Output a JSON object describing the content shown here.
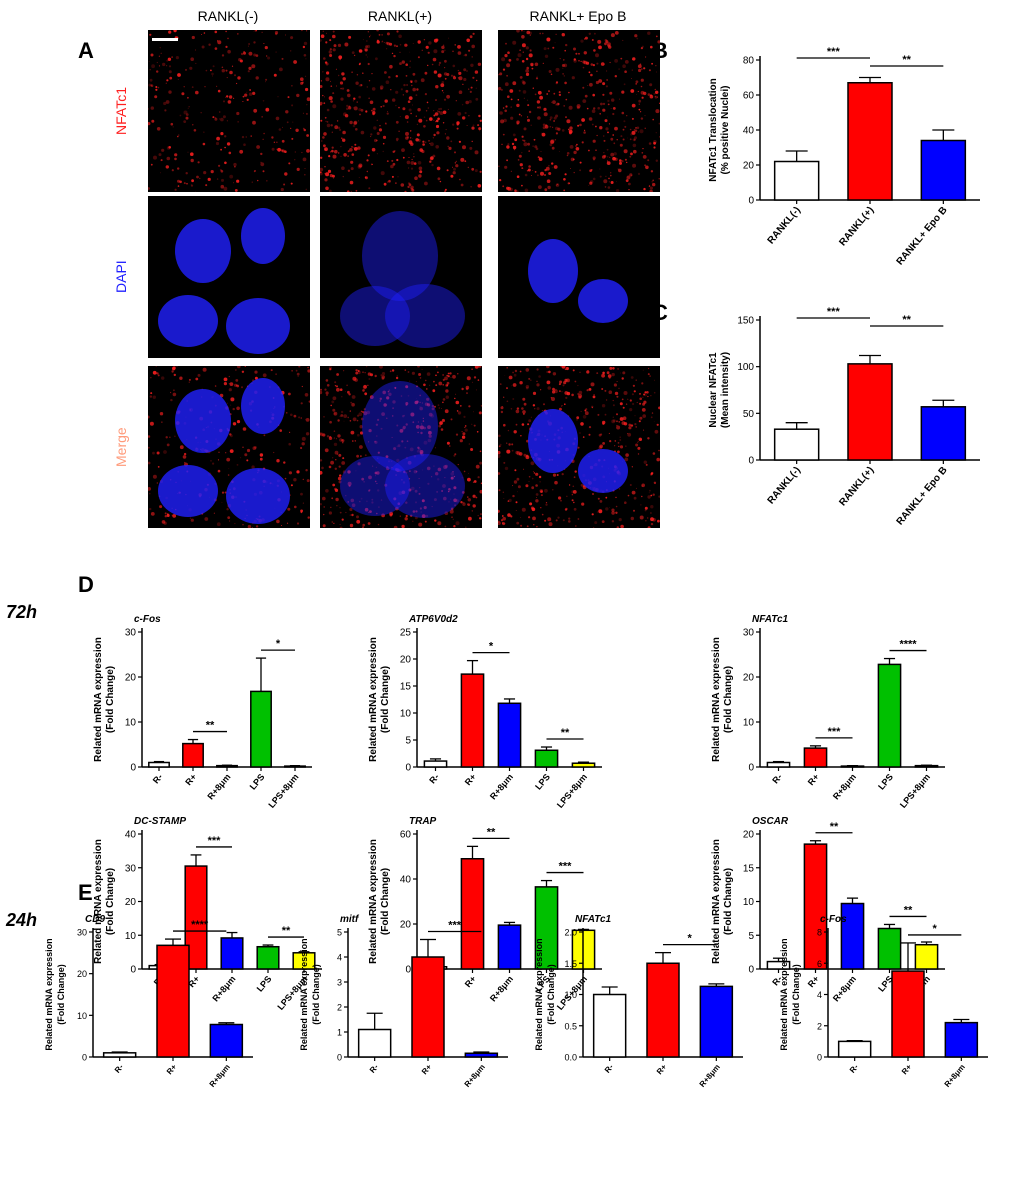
{
  "panels": {
    "A": "A",
    "B": "B",
    "C": "C",
    "D": "D",
    "E": "E"
  },
  "time_labels": {
    "t72": "72h",
    "t24": "24h"
  },
  "micrograph": {
    "columns": [
      "RANKL(-)",
      "RANKL(+)",
      "RANKL+ Epo B"
    ],
    "rows": [
      "NFATc1",
      "DAPI",
      "Merge"
    ]
  },
  "colors": {
    "white": "#ffffff",
    "red": "#ff0000",
    "blue": "#0000ff",
    "green": "#00c000",
    "yellow": "#ffff00",
    "nfatc1": "#ff2020",
    "dapi": "#2020ff",
    "merge": "#ff9a7a"
  },
  "chart_data": [
    {
      "id": "B",
      "type": "bar",
      "categories": [
        "RANKL(-)",
        "RANKL(+)",
        "RANKL+ Epo B"
      ],
      "values": [
        22,
        67,
        34
      ],
      "errors": [
        6,
        3,
        6
      ],
      "colors": [
        "white",
        "red",
        "blue"
      ],
      "ylabel": [
        "NFATc1 Translocation",
        "(% positive Nuclei)"
      ],
      "ylim": [
        0,
        80
      ],
      "yticks": [
        0,
        20,
        40,
        60,
        80
      ],
      "sig": [
        {
          "from": 0,
          "to": 1,
          "label": "***"
        },
        {
          "from": 1,
          "to": 2,
          "label": "**"
        }
      ]
    },
    {
      "id": "C",
      "type": "bar",
      "categories": [
        "RANKL(-)",
        "RANKL(+)",
        "RANKL+ Epo B"
      ],
      "values": [
        33,
        103,
        57
      ],
      "errors": [
        7,
        9,
        7
      ],
      "colors": [
        "white",
        "red",
        "blue"
      ],
      "ylabel": [
        "Nuclear NFATc1",
        "(Mean intensity)"
      ],
      "ylim": [
        0,
        150
      ],
      "yticks": [
        0,
        50,
        100,
        150
      ],
      "sig": [
        {
          "from": 0,
          "to": 1,
          "label": "***"
        },
        {
          "from": 1,
          "to": 2,
          "label": "**"
        }
      ]
    },
    {
      "id": "D1",
      "type": "bar",
      "title": "c-Fos",
      "categories": [
        "R-",
        "R+",
        "R+8μm",
        "LPS",
        "LPS+8μm"
      ],
      "values": [
        1,
        5.2,
        0.3,
        16.8,
        0.2
      ],
      "errors": [
        0.2,
        0.9,
        0.1,
        7.4,
        0.1
      ],
      "colors": [
        "white",
        "red",
        "blue",
        "green",
        "yellow"
      ],
      "ylabel": [
        "Related mRNA expression",
        "(Fold Change)"
      ],
      "ylim": [
        0,
        30
      ],
      "yticks": [
        0,
        10,
        20,
        30
      ],
      "sig": [
        {
          "from": 1,
          "to": 2,
          "label": "**"
        },
        {
          "from": 3,
          "to": 4,
          "label": "*"
        }
      ]
    },
    {
      "id": "D2",
      "type": "bar",
      "title": "ATP6V0d2",
      "categories": [
        "R-",
        "R+",
        "R+8μm",
        "LPS",
        "LPS+8μm"
      ],
      "values": [
        1.1,
        17.2,
        11.8,
        3.1,
        0.7
      ],
      "errors": [
        0.4,
        2.5,
        0.8,
        0.6,
        0.2
      ],
      "colors": [
        "white",
        "red",
        "blue",
        "green",
        "yellow"
      ],
      "ylabel": [
        "Related mRNA expression",
        "(Fold Change)"
      ],
      "ylim": [
        0,
        25
      ],
      "yticks": [
        0,
        5,
        10,
        15,
        20,
        25
      ],
      "sig": [
        {
          "from": 1,
          "to": 2,
          "label": "*"
        },
        {
          "from": 3,
          "to": 4,
          "label": "**"
        }
      ]
    },
    {
      "id": "D3",
      "type": "bar",
      "title": "NFATc1",
      "categories": [
        "R-",
        "R+",
        "R+8μm",
        "LPS",
        "LPS+8μm"
      ],
      "values": [
        1,
        4.2,
        0.2,
        22.8,
        0.3
      ],
      "errors": [
        0.2,
        0.5,
        0.1,
        1.3,
        0.1
      ],
      "colors": [
        "white",
        "red",
        "blue",
        "green",
        "yellow"
      ],
      "ylabel": [
        "Related mRNA expression",
        "(Fold Change)"
      ],
      "ylim": [
        0,
        30
      ],
      "yticks": [
        0,
        10,
        20,
        30
      ],
      "sig": [
        {
          "from": 1,
          "to": 2,
          "label": "***"
        },
        {
          "from": 3,
          "to": 4,
          "label": "****"
        }
      ]
    },
    {
      "id": "D4",
      "type": "bar",
      "title": "DC-STAMP",
      "categories": [
        "R-",
        "R+",
        "R+8μm",
        "LPS",
        "LPS+8μm"
      ],
      "values": [
        1,
        30.5,
        9.2,
        6.6,
        4.8
      ],
      "errors": [
        0.3,
        3.3,
        1.6,
        0.5,
        0.3
      ],
      "colors": [
        "white",
        "red",
        "blue",
        "green",
        "yellow"
      ],
      "ylabel": [
        "Related mRNA expression",
        "(Fold Change)"
      ],
      "ylim": [
        0,
        40
      ],
      "yticks": [
        0,
        10,
        20,
        30,
        40
      ],
      "sig": [
        {
          "from": 1,
          "to": 2,
          "label": "***"
        },
        {
          "from": 3,
          "to": 4,
          "label": "**"
        }
      ]
    },
    {
      "id": "D5",
      "type": "bar",
      "title": "TRAP",
      "categories": [
        "R-",
        "R+",
        "R+8μm",
        "LPS",
        "LPS+8μm"
      ],
      "values": [
        1,
        49,
        19.5,
        36.5,
        17.2
      ],
      "errors": [
        0.4,
        5.5,
        1.2,
        2.8,
        0.4
      ],
      "colors": [
        "white",
        "red",
        "blue",
        "green",
        "yellow"
      ],
      "ylabel": [
        "Related mRNA expression",
        "(Fold Change)"
      ],
      "ylim": [
        0,
        60
      ],
      "yticks": [
        0,
        20,
        40,
        60
      ],
      "sig": [
        {
          "from": 1,
          "to": 2,
          "label": "**"
        },
        {
          "from": 3,
          "to": 4,
          "label": "***"
        }
      ]
    },
    {
      "id": "D6",
      "type": "bar",
      "title": "OSCAR",
      "categories": [
        "R-",
        "R+",
        "R+8μm",
        "LPS",
        "LPS+8μm"
      ],
      "values": [
        1.1,
        18.5,
        9.7,
        6,
        3.6
      ],
      "errors": [
        0.5,
        0.5,
        0.8,
        0.6,
        0.4
      ],
      "colors": [
        "white",
        "red",
        "blue",
        "green",
        "yellow"
      ],
      "ylabel": [
        "Related mRNA expression",
        "(Fold Change)"
      ],
      "ylim": [
        0,
        20
      ],
      "yticks": [
        0,
        5,
        10,
        15,
        20
      ],
      "sig": [
        {
          "from": 1,
          "to": 2,
          "label": "**"
        },
        {
          "from": 3,
          "to": 4,
          "label": "**"
        }
      ]
    },
    {
      "id": "E1",
      "type": "bar",
      "title": "CD9",
      "categories": [
        "R-",
        "R+",
        "R+8μm"
      ],
      "values": [
        1,
        26.8,
        7.8
      ],
      "errors": [
        0.2,
        1.5,
        0.4
      ],
      "colors": [
        "white",
        "red",
        "blue"
      ],
      "ylabel": [
        "Related mRNA expression",
        "(Fold Change)"
      ],
      "ylim": [
        0,
        30
      ],
      "yticks": [
        0,
        10,
        20,
        30
      ],
      "sig": [
        {
          "from": 1,
          "to": 2,
          "label": "****"
        }
      ]
    },
    {
      "id": "E2",
      "type": "bar",
      "title": "mitf",
      "categories": [
        "R-",
        "R+",
        "R+8μm"
      ],
      "values": [
        1.1,
        4,
        0.15
      ],
      "errors": [
        0.65,
        0.7,
        0.05
      ],
      "colors": [
        "white",
        "red",
        "blue"
      ],
      "ylabel": [
        "Related mRNA expression",
        "(Fold Change)"
      ],
      "ylim": [
        0,
        5
      ],
      "yticks": [
        0,
        1,
        2,
        3,
        4,
        5
      ],
      "sig": [
        {
          "from": 1,
          "to": 2,
          "label": "***"
        }
      ]
    },
    {
      "id": "E3",
      "type": "bar",
      "title": "NFATc1",
      "categories": [
        "R-",
        "R+",
        "R+8μm"
      ],
      "values": [
        1,
        1.5,
        1.13
      ],
      "errors": [
        0.12,
        0.17,
        0.04
      ],
      "colors": [
        "white",
        "red",
        "blue"
      ],
      "ylabel": [
        "Related mRNA expression",
        "(Fold Change)"
      ],
      "ylim": [
        0,
        2.0
      ],
      "yticks": [
        0,
        0.5,
        1.0,
        1.5,
        2.0
      ],
      "sig": [
        {
          "from": 1,
          "to": 2,
          "label": "*"
        }
      ]
    },
    {
      "id": "E4",
      "type": "bar",
      "title": "c-Fos",
      "categories": [
        "R-",
        "R+",
        "R+8μm"
      ],
      "values": [
        1,
        5.5,
        2.2
      ],
      "errors": [
        0.05,
        1.8,
        0.2
      ],
      "colors": [
        "white",
        "red",
        "blue"
      ],
      "ylabel": [
        "Related mRNA expression",
        "(Fold Change)"
      ],
      "ylim": [
        0,
        8
      ],
      "yticks": [
        0,
        2,
        4,
        6,
        8
      ],
      "sig": [
        {
          "from": 1,
          "to": 2,
          "label": "*"
        }
      ]
    }
  ]
}
